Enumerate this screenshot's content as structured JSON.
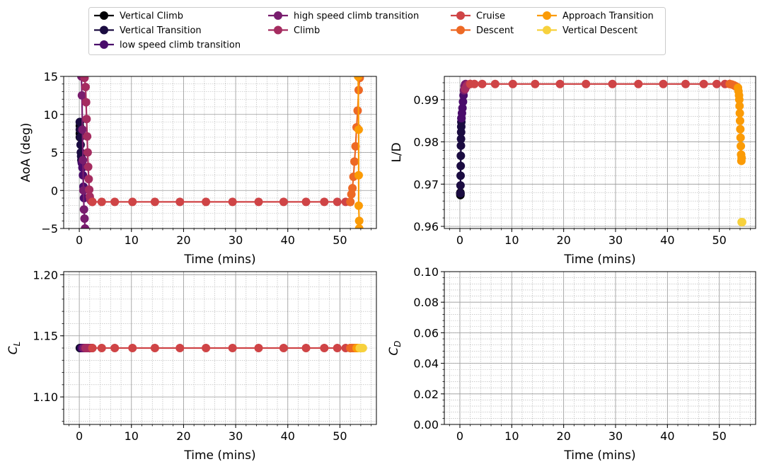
{
  "legend": {
    "entries": [
      {
        "name": "Vertical Climb",
        "color": "#000004"
      },
      {
        "name": "Vertical Transition",
        "color": "#1b0c41"
      },
      {
        "name": "low speed climb transition",
        "color": "#4a0c6b"
      },
      {
        "name": "high speed climb transition",
        "color": "#781c6d"
      },
      {
        "name": "Climb",
        "color": "#a52c60"
      },
      {
        "name": "Cruise",
        "color": "#cf4446"
      },
      {
        "name": "Descent",
        "color": "#ed6925"
      },
      {
        "name": "Approach Transition",
        "color": "#fb9b06"
      },
      {
        "name": "Vertical Descent",
        "color": "#f7d13d"
      }
    ]
  },
  "chart_data": [
    {
      "type": "line",
      "xlabel": "Time (mins)",
      "ylabel": "AoA (deg)",
      "xlim": [
        -3,
        57
      ],
      "ylim": [
        -5,
        15
      ],
      "xticks": [
        "0",
        "10",
        "20",
        "30",
        "40",
        "50"
      ],
      "yticks": [
        "−5",
        "0",
        "5",
        "10",
        "15"
      ],
      "grid": true,
      "series": [
        {
          "name": "Vertical Climb",
          "x": [
            0.1,
            0.1,
            0.1,
            0.1,
            0.1
          ],
          "y": [
            9.0,
            8.5,
            8.0,
            7.5,
            7.0
          ]
        },
        {
          "name": "Vertical Transition",
          "x": [
            0.1,
            0.15,
            0.2,
            0.25,
            0.3,
            0.35,
            0.4,
            0.45,
            0.5
          ],
          "y": [
            9.0,
            8.0,
            7.0,
            6.0,
            5.0,
            4.5,
            4.0,
            3.8,
            3.6
          ]
        },
        {
          "name": "low speed climb transition",
          "x": [
            0.5,
            0.6,
            0.7,
            0.8,
            0.9
          ],
          "y": [
            3.6,
            3.0,
            2.0,
            0.5,
            -1.0
          ]
        },
        {
          "name": "high speed climb transition",
          "x": [
            0.4,
            0.5,
            0.6,
            0.7,
            0.8,
            0.9,
            1.0,
            1.1
          ],
          "y": [
            15.0,
            12.5,
            8.0,
            4.0,
            0.0,
            -2.5,
            -3.7,
            -5.0
          ]
        },
        {
          "name": "Climb",
          "x": [
            1.0,
            1.2,
            1.3,
            1.4,
            1.5,
            1.6,
            1.7,
            1.8,
            1.9,
            2.0,
            2.1,
            2.2,
            2.3,
            2.5
          ],
          "y": [
            14.8,
            13.6,
            11.6,
            9.4,
            7.1,
            5.0,
            3.1,
            1.5,
            0.1,
            -0.8,
            -1.2,
            -1.3,
            -1.4,
            -1.5
          ]
        },
        {
          "name": "Cruise",
          "x": [
            2.5,
            4.3,
            6.8,
            10.2,
            14.5,
            19.3,
            24.3,
            29.4,
            34.4,
            39.2,
            43.5,
            47.0,
            49.5,
            51.1,
            52.0
          ],
          "y": [
            -1.5,
            -1.5,
            -1.5,
            -1.5,
            -1.5,
            -1.5,
            -1.5,
            -1.5,
            -1.5,
            -1.5,
            -1.5,
            -1.5,
            -1.5,
            -1.5,
            -1.5
          ]
        },
        {
          "name": "Descent",
          "x": [
            52.0,
            52.2,
            52.4,
            52.6,
            52.8,
            53.0,
            53.2,
            53.4,
            53.6,
            53.8
          ],
          "y": [
            -1.5,
            -0.5,
            0.3,
            1.8,
            3.8,
            5.8,
            8.3,
            10.5,
            13.2,
            14.8
          ]
        },
        {
          "name": "Approach Transition",
          "x": [
            53.5,
            53.6,
            53.6,
            53.6,
            53.7,
            53.7
          ],
          "y": [
            15.0,
            8.0,
            2.0,
            -2.0,
            -4.0,
            -5.0
          ]
        },
        {
          "name": "Vertical Descent",
          "x": [],
          "y": []
        }
      ]
    },
    {
      "type": "line",
      "xlabel": "Time (mins)",
      "ylabel": "L/D",
      "xlim": [
        -3,
        57
      ],
      "ylim": [
        0.9595,
        0.9955
      ],
      "xticks": [
        "0",
        "10",
        "20",
        "30",
        "40",
        "50"
      ],
      "yticks": [
        "0.96",
        "0.97",
        "0.98",
        "0.99"
      ],
      "grid": true,
      "series": [
        {
          "name": "Vertical Climb",
          "x": [
            0.1,
            0.1,
            0.1,
            0.1
          ],
          "y": [
            0.9674,
            0.9676,
            0.9678,
            0.968
          ]
        },
        {
          "name": "Vertical Transition",
          "x": [
            0.1,
            0.12,
            0.14,
            0.16,
            0.18,
            0.2,
            0.22,
            0.24,
            0.26,
            0.28,
            0.3
          ],
          "y": [
            0.9678,
            0.9697,
            0.972,
            0.9743,
            0.9767,
            0.9791,
            0.9807,
            0.9823,
            0.9836,
            0.9847,
            0.9856
          ]
        },
        {
          "name": "low speed climb transition",
          "x": [
            0.3,
            0.4,
            0.5,
            0.6,
            0.7,
            0.8
          ],
          "y": [
            0.9856,
            0.9868,
            0.988,
            0.9895,
            0.991,
            0.9922
          ]
        },
        {
          "name": "high speed climb transition",
          "x": [
            0.8,
            0.9,
            1.0,
            1.1
          ],
          "y": [
            0.9922,
            0.9932,
            0.9936,
            0.9937
          ]
        },
        {
          "name": "Climb",
          "x": [
            1.0,
            1.3,
            1.6,
            2.0
          ],
          "y": [
            0.9925,
            0.9932,
            0.9936,
            0.9937
          ]
        },
        {
          "name": "Cruise",
          "x": [
            2.0,
            2.8,
            4.3,
            6.8,
            10.2,
            14.5,
            19.3,
            24.3,
            29.4,
            34.4,
            39.2,
            43.5,
            47.0,
            49.5,
            51.1,
            52.0
          ],
          "y": [
            0.9937,
            0.9937,
            0.9937,
            0.9937,
            0.9937,
            0.9937,
            0.9937,
            0.9937,
            0.9937,
            0.9937,
            0.9937,
            0.9937,
            0.9937,
            0.9937,
            0.9937,
            0.9937
          ]
        },
        {
          "name": "Descent",
          "x": [
            52.0,
            52.4,
            52.8,
            53.1,
            53.4
          ],
          "y": [
            0.9937,
            0.9936,
            0.9934,
            0.9932,
            0.993
          ]
        },
        {
          "name": "Approach Transition",
          "x": [
            53.6,
            53.7,
            53.8,
            53.85,
            53.9,
            53.95,
            54.0,
            54.05,
            54.1,
            54.15,
            54.2,
            54.25,
            54.3
          ],
          "y": [
            0.9928,
            0.992,
            0.991,
            0.99,
            0.9885,
            0.9868,
            0.985,
            0.983,
            0.981,
            0.979,
            0.977,
            0.9755,
            0.9762
          ]
        },
        {
          "name": "Vertical Descent",
          "x": [
            54.3,
            54.4
          ],
          "y": [
            0.961,
            0.961
          ]
        }
      ]
    },
    {
      "type": "line",
      "xlabel": "Time (mins)",
      "ylabel": "C_L",
      "xlim": [
        -3,
        57
      ],
      "ylim": [
        1.0775,
        1.2025
      ],
      "xticks": [
        "0",
        "10",
        "20",
        "30",
        "40",
        "50"
      ],
      "yticks": [
        "1.10",
        "1.15",
        "1.20"
      ],
      "grid": true,
      "series": [
        {
          "name": "Vertical Climb",
          "x": [
            0.1,
            0.2
          ],
          "y": [
            1.14,
            1.14
          ]
        },
        {
          "name": "Vertical Transition",
          "x": [
            0.2,
            0.3,
            0.4,
            0.5
          ],
          "y": [
            1.14,
            1.14,
            1.14,
            1.14
          ]
        },
        {
          "name": "low speed climb transition",
          "x": [
            0.5,
            0.6,
            0.7,
            0.8
          ],
          "y": [
            1.14,
            1.14,
            1.14,
            1.14
          ]
        },
        {
          "name": "high speed climb transition",
          "x": [
            0.8,
            0.9,
            1.0,
            1.1,
            1.2
          ],
          "y": [
            1.14,
            1.14,
            1.14,
            1.14,
            1.14
          ]
        },
        {
          "name": "Climb",
          "x": [
            1.2,
            1.4,
            1.6,
            1.8,
            2.0,
            2.2,
            2.5
          ],
          "y": [
            1.14,
            1.14,
            1.14,
            1.14,
            1.14,
            1.14,
            1.14
          ]
        },
        {
          "name": "Cruise",
          "x": [
            2.5,
            4.3,
            6.8,
            10.2,
            14.5,
            19.3,
            24.3,
            29.4,
            34.4,
            39.2,
            43.5,
            47.0,
            49.5,
            51.1,
            52.0
          ],
          "y": [
            1.14,
            1.14,
            1.14,
            1.14,
            1.14,
            1.14,
            1.14,
            1.14,
            1.14,
            1.14,
            1.14,
            1.14,
            1.14,
            1.14,
            1.14
          ]
        },
        {
          "name": "Descent",
          "x": [
            52.0,
            52.3,
            52.6,
            52.9,
            53.2
          ],
          "y": [
            1.14,
            1.14,
            1.14,
            1.14,
            1.14
          ]
        },
        {
          "name": "Approach Transition",
          "x": [
            53.2,
            53.4,
            53.6,
            53.8
          ],
          "y": [
            1.14,
            1.14,
            1.14,
            1.14
          ]
        },
        {
          "name": "Vertical Descent",
          "x": [
            53.8,
            54.1,
            54.4
          ],
          "y": [
            1.14,
            1.14,
            1.14
          ]
        }
      ]
    },
    {
      "type": "line",
      "xlabel": "Time (mins)",
      "ylabel": "C_D",
      "xlim": [
        -3,
        57
      ],
      "ylim": [
        0,
        0.1
      ],
      "xticks": [
        "0",
        "10",
        "20",
        "30",
        "40",
        "50"
      ],
      "yticks": [
        "0.00",
        "0.02",
        "0.04",
        "0.06",
        "0.08",
        "0.10"
      ],
      "grid": true,
      "series": []
    }
  ]
}
